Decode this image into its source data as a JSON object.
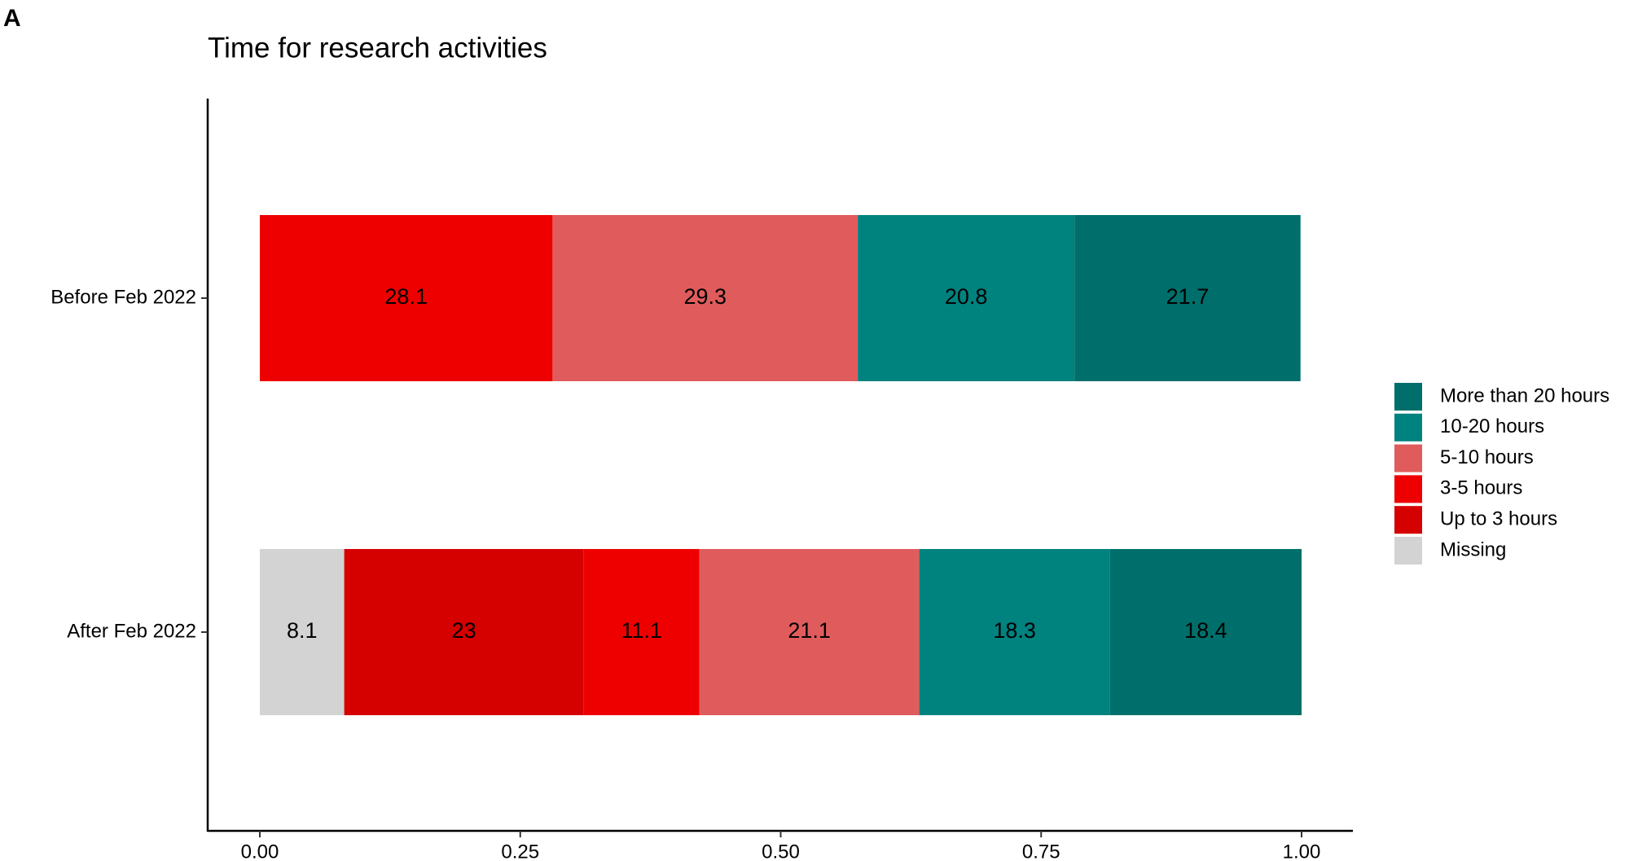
{
  "panel_label": "A",
  "chart_data": {
    "type": "stacked_barh",
    "title": "Time for research activities",
    "categories": [
      "Before Feb 2022",
      "After Feb 2022"
    ],
    "series": [
      {
        "name": "Missing",
        "color": "#d3d3d3",
        "values": [
          null,
          0.081
        ],
        "value_labels": [
          null,
          "8.1"
        ]
      },
      {
        "name": "Up to 3 hours",
        "color": "#d50000",
        "values": [
          null,
          0.23
        ],
        "value_labels": [
          null,
          "23"
        ]
      },
      {
        "name": "3-5 hours",
        "color": "#ef0000",
        "values": [
          0.281,
          0.111
        ],
        "value_labels": [
          "28.1",
          "11.1"
        ]
      },
      {
        "name": "5-10 hours",
        "color": "#e05c5c",
        "values": [
          0.293,
          0.211
        ],
        "value_labels": [
          "29.3",
          "21.1"
        ]
      },
      {
        "name": "10-20 hours",
        "color": "#00827f",
        "values": [
          0.208,
          0.183
        ],
        "value_labels": [
          "20.8",
          "18.3"
        ]
      },
      {
        "name": "More than 20 hours",
        "color": "#006f6b",
        "values": [
          0.217,
          0.184
        ],
        "value_labels": [
          "21.7",
          "18.4"
        ]
      }
    ],
    "xlim": [
      0,
      1
    ],
    "xticks": [
      {
        "value": 0,
        "label": "0.00"
      },
      {
        "value": 0.25,
        "label": "0.25"
      },
      {
        "value": 0.5,
        "label": "0.50"
      },
      {
        "value": 0.75,
        "label": "0.75"
      },
      {
        "value": 1,
        "label": "1.00"
      }
    ],
    "legend": "right",
    "grid": false
  }
}
